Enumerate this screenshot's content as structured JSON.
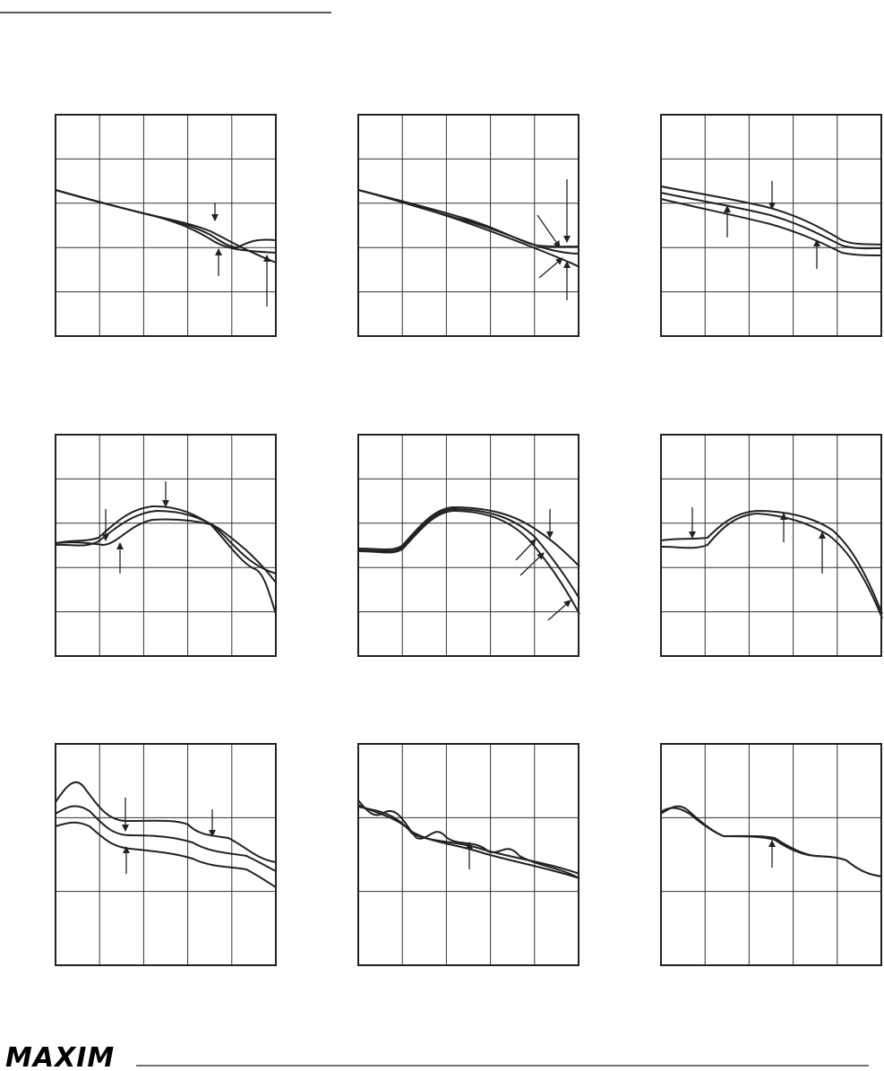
{
  "footer": {
    "logo": "MAXIM"
  }
}
